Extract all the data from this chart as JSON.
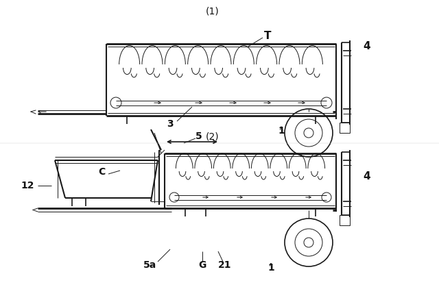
{
  "bg_color": "#ffffff",
  "line_color": "#1a1a1a",
  "label_color": "#111111",
  "fig_width": 6.4,
  "fig_height": 4.19,
  "dpi": 100,
  "label1": "(1)",
  "label2": "(2)",
  "tag_T": "T",
  "tag_4a": "4",
  "tag_3": "3",
  "tag_1a": "1",
  "tag_5": "5",
  "tag_C": "C",
  "tag_12": "12",
  "tag_4b": "4",
  "tag_5a": "5a",
  "tag_G": "G",
  "tag_21": "21",
  "tag_1b": "1"
}
